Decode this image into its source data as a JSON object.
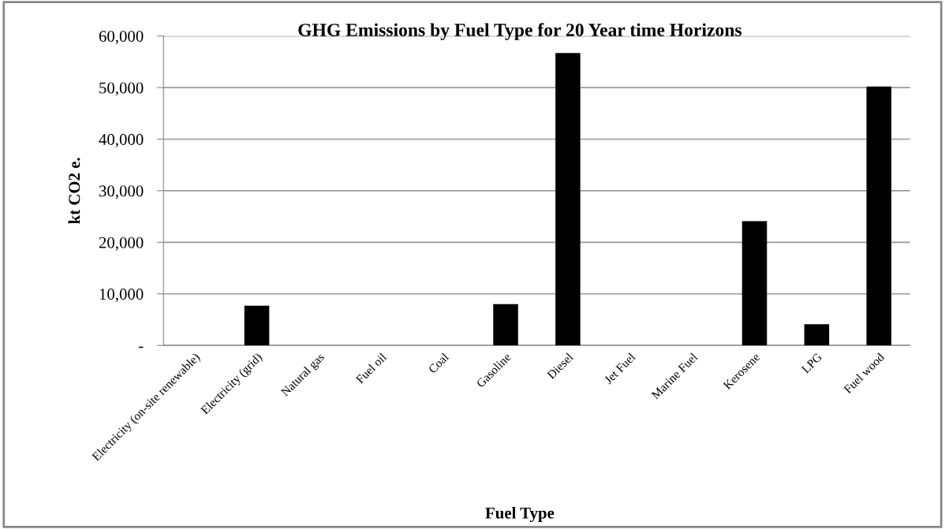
{
  "chart_data": {
    "type": "bar",
    "title": "GHG Emissions by Fuel Type for 20 Year time Horizons",
    "xlabel": "Fuel Type",
    "ylabel": "kt CO2 e.",
    "categories": [
      "Electricity (on-site renewable)",
      "Electricity (grid)",
      "Natural gas",
      "Fuel oil",
      "Coal",
      "Gasoline",
      "Diesel",
      "Jet Fuel",
      "Marine Fuel",
      "Kerosene",
      "LPG",
      "Fuel wood"
    ],
    "values": [
      0,
      7700,
      0,
      0,
      0,
      8000,
      56700,
      0,
      0,
      24100,
      4100,
      50200
    ],
    "color": "#000000",
    "ylim": [
      0,
      60000
    ],
    "yticks": [
      {
        "value": 0,
        "label": "-"
      },
      {
        "value": 10000,
        "label": "10,000"
      },
      {
        "value": 20000,
        "label": "20,000"
      },
      {
        "value": 30000,
        "label": "30,000"
      },
      {
        "value": 40000,
        "label": "40,000"
      },
      {
        "value": 50000,
        "label": "50,000"
      },
      {
        "value": 60000,
        "label": "60,000"
      }
    ],
    "grid": "y",
    "legend": false
  }
}
